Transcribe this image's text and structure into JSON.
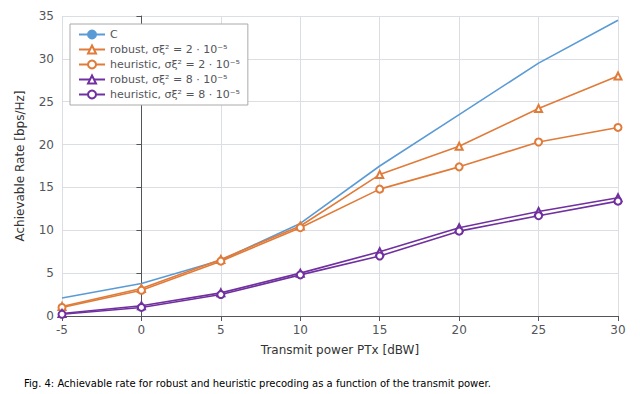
{
  "chart_data": {
    "type": "line",
    "x": [
      -5,
      0,
      5,
      10,
      15,
      20,
      25,
      30
    ],
    "series": [
      {
        "name": "C",
        "color": "#5b9bd5",
        "marker": "none",
        "values": [
          2.1,
          3.8,
          6.5,
          10.8,
          17.5,
          23.5,
          29.5,
          34.5
        ]
      },
      {
        "name": "robust, σξ² = 2 · 10⁻⁵",
        "color": "#e07b39",
        "marker": "triangle",
        "values": [
          1.1,
          3.2,
          6.6,
          10.5,
          16.5,
          19.8,
          24.2,
          28.0
        ]
      },
      {
        "name": "heuristic, σξ² = 2 · 10⁻⁵",
        "color": "#e07b39",
        "marker": "circle",
        "values": [
          1.0,
          3.0,
          6.4,
          10.3,
          14.8,
          17.4,
          20.3,
          22.0
        ]
      },
      {
        "name": "robust, σξ² = 8 · 10⁻⁵",
        "color": "#7030a0",
        "marker": "triangle",
        "values": [
          0.3,
          1.2,
          2.7,
          5.0,
          7.5,
          10.3,
          12.2,
          13.8
        ]
      },
      {
        "name": "heuristic, σξ² = 8 · 10⁻⁵",
        "color": "#7030a0",
        "marker": "circle",
        "values": [
          0.2,
          1.0,
          2.5,
          4.8,
          7.0,
          9.9,
          11.7,
          13.4
        ]
      }
    ],
    "xlabel": "Transmit power PTx [dBW]",
    "ylabel": "Achievable Rate [bps/Hz]",
    "xlim": [
      -5,
      30
    ],
    "ylim": [
      0,
      35
    ],
    "xticks": [
      -5,
      0,
      5,
      10,
      15,
      20,
      25,
      30
    ],
    "yticks": [
      0,
      5,
      10,
      15,
      20,
      25,
      30,
      35
    ],
    "grid": true,
    "legend": "upper left",
    "caption": "Fig. 4: Achievable rate for robust and heuristic precoding as a function of the transmit power."
  }
}
